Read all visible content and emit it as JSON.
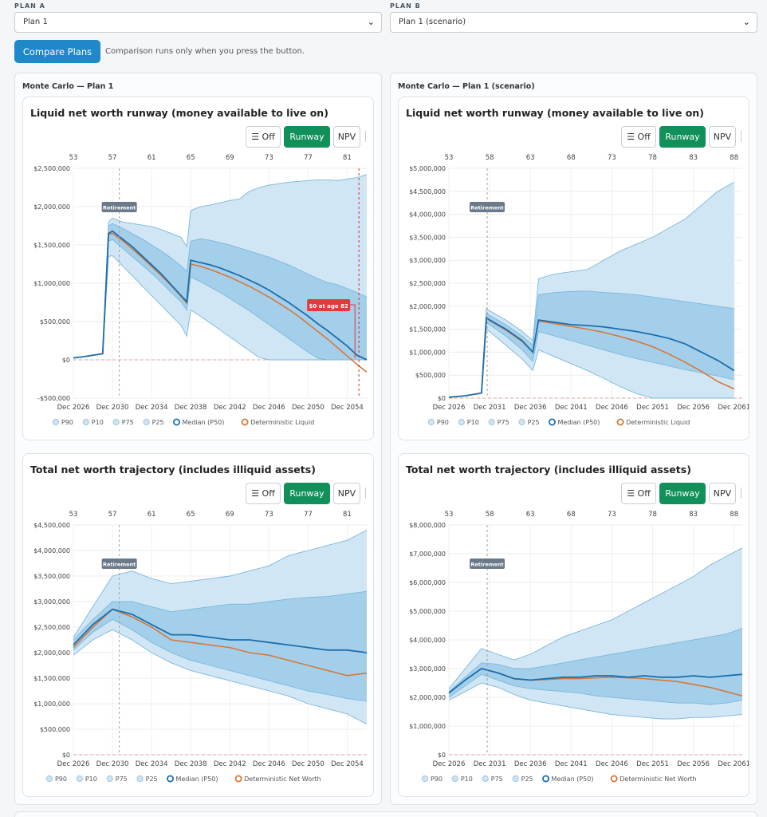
{
  "plans": {
    "a_label": "PLAN A",
    "a_value": "Plan 1",
    "b_label": "PLAN B",
    "b_value": "Plan 1 (scenario)"
  },
  "compare": {
    "button": "Compare Plans",
    "note": "Comparison runs only when you press the button."
  },
  "panels": [
    {
      "title": "Monte Carlo — Plan 1"
    },
    {
      "title": "Monte Carlo — Plan 1 (scenario)"
    }
  ],
  "toggle": {
    "off": "Off",
    "runway": "Runway",
    "npv": "NPV",
    "active": "Runway"
  },
  "colors": {
    "band_outer": "#cfe5f3",
    "band_inner": "#9ccae7",
    "median": "#1a6fae",
    "deterministic": "#d6783a",
    "accent_green": "#11905a",
    "accent_blue": "#1e88c8"
  },
  "chart_data": [
    {
      "type": "area",
      "title": "Liquid net worth runway (money available to live on)",
      "x_labels": [
        "Dec 2026",
        "Dec 2030",
        "Dec 2034",
        "Dec 2038",
        "Dec 2042",
        "Dec 2046",
        "Dec 2050",
        "Dec 2054"
      ],
      "x_range": [
        2026,
        2056
      ],
      "age_labels": [
        "53",
        "57",
        "61",
        "65",
        "69",
        "73",
        "77",
        "81"
      ],
      "y_ticks": [
        -500000,
        0,
        500000,
        1000000,
        1500000,
        2000000,
        2500000
      ],
      "y_tick_labels": [
        "-$500,000",
        "$0",
        "$500,000",
        "$1,000,000",
        "$1,500,000",
        "$2,000,000",
        "$2,500,000"
      ],
      "ylim": [
        -500000,
        2500000
      ],
      "retirement": {
        "x": 2030.7,
        "label": "Retirement"
      },
      "depletion": {
        "x": 2055.2,
        "label": "$0 at age 82"
      },
      "legend": [
        "P90",
        "P10",
        "P75",
        "P25",
        "Median (P50)",
        "Deterministic Liquid"
      ],
      "x": [
        2026,
        2027,
        2028,
        2029,
        2029.6,
        2030,
        2031,
        2032,
        2033,
        2034,
        2035,
        2036,
        2037,
        2037.6,
        2038,
        2039,
        2040,
        2041,
        2042,
        2043,
        2044,
        2045,
        2046,
        2047,
        2048,
        2049,
        2050,
        2051,
        2052,
        2053,
        2054,
        2055,
        2056
      ],
      "series": [
        {
          "name": "P90",
          "values": [
            25000,
            40000,
            60000,
            80000,
            1800000,
            1850000,
            1800000,
            1780000,
            1760000,
            1740000,
            1700000,
            1650000,
            1600000,
            1480000,
            1950000,
            2000000,
            2020000,
            2050000,
            2080000,
            2100000,
            2200000,
            2250000,
            2280000,
            2300000,
            2320000,
            2330000,
            2340000,
            2350000,
            2350000,
            2340000,
            2360000,
            2380000,
            2420000
          ]
        },
        {
          "name": "P75",
          "values": [
            25000,
            40000,
            60000,
            80000,
            1750000,
            1780000,
            1720000,
            1650000,
            1580000,
            1500000,
            1420000,
            1330000,
            1230000,
            1150000,
            1550000,
            1580000,
            1560000,
            1530000,
            1500000,
            1460000,
            1420000,
            1380000,
            1340000,
            1290000,
            1240000,
            1180000,
            1120000,
            1060000,
            1010000,
            980000,
            930000,
            880000,
            820000
          ]
        },
        {
          "name": "P25",
          "values": [
            25000,
            40000,
            60000,
            80000,
            1550000,
            1570000,
            1460000,
            1350000,
            1240000,
            1130000,
            1010000,
            880000,
            760000,
            650000,
            1080000,
            1020000,
            950000,
            880000,
            800000,
            720000,
            640000,
            550000,
            460000,
            370000,
            280000,
            190000,
            100000,
            20000,
            0,
            0,
            0,
            0,
            0
          ]
        },
        {
          "name": "P10",
          "values": [
            25000,
            40000,
            60000,
            80000,
            1350000,
            1360000,
            1230000,
            1100000,
            970000,
            840000,
            710000,
            580000,
            450000,
            310000,
            650000,
            570000,
            480000,
            390000,
            300000,
            210000,
            120000,
            30000,
            0,
            0,
            0,
            0,
            0,
            0,
            0,
            0,
            0,
            0,
            0
          ]
        },
        {
          "name": "Median (P50)",
          "values": [
            25000,
            40000,
            60000,
            80000,
            1650000,
            1680000,
            1580000,
            1480000,
            1360000,
            1240000,
            1120000,
            980000,
            840000,
            760000,
            1300000,
            1270000,
            1240000,
            1200000,
            1150000,
            1100000,
            1040000,
            980000,
            910000,
            830000,
            750000,
            660000,
            570000,
            470000,
            380000,
            280000,
            180000,
            60000,
            0
          ]
        },
        {
          "name": "Deterministic Liquid",
          "values": [
            25000,
            40000,
            60000,
            80000,
            1640000,
            1650000,
            1560000,
            1450000,
            1340000,
            1220000,
            1100000,
            970000,
            830000,
            740000,
            1250000,
            1220000,
            1180000,
            1130000,
            1080000,
            1020000,
            960000,
            890000,
            820000,
            740000,
            660000,
            570000,
            470000,
            370000,
            270000,
            160000,
            50000,
            -60000,
            -160000
          ]
        }
      ]
    },
    {
      "type": "area",
      "title": "Liquid net worth runway (money available to live on)",
      "x_labels": [
        "Dec 2026",
        "Dec 2031",
        "Dec 2036",
        "Dec 2041",
        "Dec 2046",
        "Dec 2051",
        "Dec 2056",
        "Dec 2061"
      ],
      "x_range": [
        2026,
        2062
      ],
      "age_labels": [
        "53",
        "58",
        "63",
        "68",
        "73",
        "78",
        "83",
        "88"
      ],
      "y_ticks": [
        0,
        500000,
        1000000,
        1500000,
        2000000,
        2500000,
        3000000,
        3500000,
        4000000,
        4500000,
        5000000
      ],
      "y_tick_labels": [
        "$0",
        "$500,000",
        "$1,000,000",
        "$1,500,000",
        "$2,000,000",
        "$2,500,000",
        "$3,000,000",
        "$3,500,000",
        "$4,000,000",
        "$4,500,000",
        "$5,000,000"
      ],
      "ylim": [
        0,
        5000000
      ],
      "retirement": {
        "x": 2030.7,
        "label": "Retirement"
      },
      "legend": [
        "P90",
        "P10",
        "P75",
        "P25",
        "Median (P50)",
        "Deterministic Liquid"
      ],
      "x": [
        2026,
        2028,
        2030,
        2030.6,
        2031,
        2033,
        2035,
        2036.3,
        2037,
        2039,
        2041,
        2043,
        2045,
        2047,
        2049,
        2051,
        2053,
        2055,
        2057,
        2059,
        2061
      ],
      "series": [
        {
          "name": "P90",
          "values": [
            20000,
            50000,
            110000,
            1950000,
            1900000,
            1700000,
            1450000,
            1250000,
            2600000,
            2700000,
            2750000,
            2800000,
            3000000,
            3200000,
            3350000,
            3500000,
            3700000,
            3900000,
            4200000,
            4500000,
            4700000
          ]
        },
        {
          "name": "P75",
          "values": [
            20000,
            50000,
            110000,
            1850000,
            1800000,
            1600000,
            1350000,
            1150000,
            2250000,
            2300000,
            2320000,
            2330000,
            2300000,
            2280000,
            2250000,
            2200000,
            2150000,
            2100000,
            2050000,
            2000000,
            1950000
          ]
        },
        {
          "name": "P25",
          "values": [
            20000,
            50000,
            110000,
            1650000,
            1600000,
            1350000,
            1050000,
            800000,
            1450000,
            1350000,
            1250000,
            1150000,
            1050000,
            950000,
            860000,
            780000,
            700000,
            620000,
            550000,
            480000,
            400000
          ]
        },
        {
          "name": "P10",
          "values": [
            20000,
            50000,
            110000,
            1500000,
            1450000,
            1150000,
            850000,
            600000,
            1050000,
            900000,
            750000,
            600000,
            430000,
            250000,
            100000,
            0,
            0,
            0,
            0,
            0,
            0
          ]
        },
        {
          "name": "Median (P50)",
          "values": [
            20000,
            50000,
            110000,
            1750000,
            1700000,
            1500000,
            1250000,
            1000000,
            1700000,
            1650000,
            1600000,
            1580000,
            1550000,
            1500000,
            1450000,
            1380000,
            1300000,
            1180000,
            1000000,
            820000,
            600000
          ]
        },
        {
          "name": "Deterministic Liquid",
          "values": [
            20000,
            50000,
            110000,
            1740000,
            1690000,
            1480000,
            1230000,
            1000000,
            1680000,
            1620000,
            1560000,
            1500000,
            1430000,
            1340000,
            1240000,
            1120000,
            960000,
            780000,
            580000,
            360000,
            200000
          ]
        }
      ]
    },
    {
      "type": "area",
      "title": "Total net worth trajectory (includes illiquid assets)",
      "x_labels": [
        "Dec 2026",
        "Dec 2030",
        "Dec 2034",
        "Dec 2038",
        "Dec 2042",
        "Dec 2046",
        "Dec 2050",
        "Dec 2054"
      ],
      "x_range": [
        2026,
        2056
      ],
      "age_labels": [
        "53",
        "57",
        "61",
        "65",
        "69",
        "73",
        "77",
        "81"
      ],
      "y_ticks": [
        0,
        500000,
        1000000,
        1500000,
        2000000,
        2500000,
        3000000,
        3500000,
        4000000,
        4500000
      ],
      "y_tick_labels": [
        "$0",
        "$500,000",
        "$1,000,000",
        "$1,500,000",
        "$2,000,000",
        "$2,500,000",
        "$3,000,000",
        "$3,500,000",
        "$4,000,000",
        "$4,500,000"
      ],
      "ylim": [
        0,
        4500000
      ],
      "retirement": {
        "x": 2030.7,
        "label": "Retirement"
      },
      "legend": [
        "P90",
        "P10",
        "P75",
        "P25",
        "Median (P50)",
        "Deterministic Net Worth"
      ],
      "x": [
        2026,
        2028,
        2030,
        2032,
        2034,
        2036,
        2038,
        2040,
        2042,
        2044,
        2046,
        2048,
        2050,
        2052,
        2054,
        2056
      ],
      "series": [
        {
          "name": "P90",
          "values": [
            2300000,
            2900000,
            3500000,
            3600000,
            3450000,
            3350000,
            3400000,
            3450000,
            3500000,
            3600000,
            3700000,
            3900000,
            4000000,
            4100000,
            4200000,
            4400000
          ]
        },
        {
          "name": "P75",
          "values": [
            2250000,
            2650000,
            3000000,
            3000000,
            2900000,
            2800000,
            2850000,
            2900000,
            2950000,
            2950000,
            3000000,
            3050000,
            3080000,
            3100000,
            3150000,
            3200000
          ]
        },
        {
          "name": "P25",
          "values": [
            2050000,
            2400000,
            2650000,
            2450000,
            2200000,
            2000000,
            1850000,
            1750000,
            1650000,
            1550000,
            1450000,
            1350000,
            1250000,
            1180000,
            1100000,
            1050000
          ]
        },
        {
          "name": "P10",
          "values": [
            1950000,
            2250000,
            2450000,
            2250000,
            2000000,
            1800000,
            1650000,
            1550000,
            1450000,
            1350000,
            1250000,
            1150000,
            1000000,
            900000,
            800000,
            600000
          ]
        },
        {
          "name": "Median (P50)",
          "values": [
            2150000,
            2550000,
            2850000,
            2750000,
            2550000,
            2350000,
            2350000,
            2300000,
            2250000,
            2250000,
            2200000,
            2150000,
            2100000,
            2050000,
            2050000,
            2000000
          ]
        },
        {
          "name": "Deterministic Net Worth",
          "values": [
            2100000,
            2500000,
            2850000,
            2700000,
            2500000,
            2250000,
            2200000,
            2150000,
            2100000,
            2000000,
            1950000,
            1850000,
            1750000,
            1650000,
            1550000,
            1600000
          ]
        }
      ]
    },
    {
      "type": "area",
      "title": "Total net worth trajectory (includes illiquid assets)",
      "x_labels": [
        "Dec 2026",
        "Dec 2031",
        "Dec 2036",
        "Dec 2041",
        "Dec 2046",
        "Dec 2051",
        "Dec 2056",
        "Dec 2061"
      ],
      "x_range": [
        2026,
        2062
      ],
      "age_labels": [
        "53",
        "58",
        "63",
        "68",
        "73",
        "78",
        "83",
        "88"
      ],
      "y_ticks": [
        0,
        1000000,
        2000000,
        3000000,
        4000000,
        5000000,
        6000000,
        7000000,
        8000000
      ],
      "y_tick_labels": [
        "$0",
        "$1,000,000",
        "$2,000,000",
        "$3,000,000",
        "$4,000,000",
        "$5,000,000",
        "$6,000,000",
        "$7,000,000",
        "$8,000,000"
      ],
      "ylim": [
        0,
        8000000
      ],
      "retirement": {
        "x": 2030.7,
        "label": "Retirement"
      },
      "legend": [
        "P90",
        "P10",
        "P75",
        "P25",
        "Median (P50)",
        "Deterministic Net Worth"
      ],
      "x": [
        2026,
        2028,
        2030,
        2032,
        2034,
        2036,
        2038,
        2040,
        2042,
        2044,
        2046,
        2048,
        2050,
        2052,
        2054,
        2056,
        2058,
        2060,
        2062
      ],
      "series": [
        {
          "name": "P90",
          "values": [
            2300000,
            3000000,
            3700000,
            3500000,
            3300000,
            3500000,
            3800000,
            4100000,
            4300000,
            4500000,
            4700000,
            5000000,
            5300000,
            5600000,
            5900000,
            6200000,
            6600000,
            6900000,
            7200000
          ]
        },
        {
          "name": "P75",
          "values": [
            2200000,
            2700000,
            3200000,
            3150000,
            3000000,
            3000000,
            3100000,
            3200000,
            3300000,
            3400000,
            3500000,
            3600000,
            3700000,
            3800000,
            3900000,
            4000000,
            4100000,
            4200000,
            4400000
          ]
        },
        {
          "name": "P25",
          "values": [
            2000000,
            2400000,
            2800000,
            2600000,
            2400000,
            2300000,
            2250000,
            2200000,
            2150000,
            2050000,
            2000000,
            1950000,
            1900000,
            1850000,
            1800000,
            1800000,
            1750000,
            1800000,
            1900000
          ]
        },
        {
          "name": "P10",
          "values": [
            1900000,
            2200000,
            2500000,
            2350000,
            2100000,
            1900000,
            1800000,
            1700000,
            1600000,
            1500000,
            1400000,
            1350000,
            1300000,
            1250000,
            1250000,
            1300000,
            1300000,
            1350000,
            1400000
          ]
        },
        {
          "name": "Median (P50)",
          "values": [
            2150000,
            2600000,
            3000000,
            2850000,
            2650000,
            2600000,
            2650000,
            2700000,
            2700000,
            2750000,
            2750000,
            2700000,
            2750000,
            2700000,
            2700000,
            2750000,
            2700000,
            2750000,
            2800000
          ]
        },
        {
          "name": "Deterministic Net Worth",
          "values": [
            2150000,
            2600000,
            3000000,
            2850000,
            2650000,
            2600000,
            2620000,
            2650000,
            2650000,
            2680000,
            2700000,
            2680000,
            2650000,
            2600000,
            2550000,
            2450000,
            2350000,
            2200000,
            2050000
          ]
        }
      ]
    }
  ]
}
